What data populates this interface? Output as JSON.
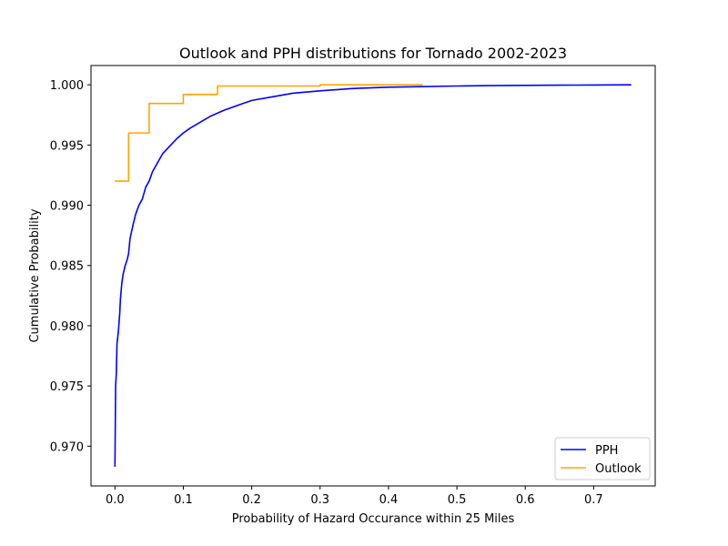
{
  "chart_data": {
    "type": "line",
    "title": "Outlook and PPH distributions for Tornado 2002-2023",
    "xlabel": "Probability of Hazard Occurance within 25 Miles",
    "ylabel": "Cumulative Probability",
    "xlim": [
      -0.035,
      0.79
    ],
    "ylim": [
      0.9667,
      1.0016
    ],
    "xticks": [
      0.0,
      0.1,
      0.2,
      0.3,
      0.4,
      0.5,
      0.6,
      0.7
    ],
    "xtick_labels": [
      "0.0",
      "0.1",
      "0.2",
      "0.3",
      "0.4",
      "0.5",
      "0.6",
      "0.7"
    ],
    "yticks": [
      0.97,
      0.975,
      0.98,
      0.985,
      0.99,
      0.995,
      1.0
    ],
    "ytick_labels": [
      "0.970",
      "0.975",
      "0.980",
      "0.985",
      "0.990",
      "0.995",
      "1.000"
    ],
    "grid": false,
    "legend_position": "lower-right",
    "series": [
      {
        "name": "PPH",
        "color": "#0000ff",
        "step": false,
        "x": [
          0.0,
          0.001,
          0.002,
          0.003,
          0.005,
          0.007,
          0.008,
          0.01,
          0.012,
          0.015,
          0.018,
          0.02,
          0.022,
          0.025,
          0.027,
          0.03,
          0.035,
          0.04,
          0.045,
          0.05,
          0.055,
          0.06,
          0.065,
          0.07,
          0.08,
          0.09,
          0.1,
          0.11,
          0.125,
          0.14,
          0.16,
          0.18,
          0.2,
          0.23,
          0.26,
          0.3,
          0.35,
          0.4,
          0.45,
          0.5,
          0.55,
          0.6,
          0.65,
          0.7,
          0.755
        ],
        "y": [
          0.9683,
          0.975,
          0.976,
          0.9785,
          0.9795,
          0.981,
          0.9822,
          0.9835,
          0.9843,
          0.985,
          0.9855,
          0.986,
          0.9872,
          0.988,
          0.9885,
          0.9892,
          0.99,
          0.9905,
          0.9915,
          0.992,
          0.9928,
          0.9933,
          0.9938,
          0.9943,
          0.9949,
          0.9955,
          0.996,
          0.9964,
          0.9969,
          0.9974,
          0.9979,
          0.9983,
          0.9987,
          0.999,
          0.9993,
          0.9995,
          0.9997,
          0.9998,
          0.99985,
          0.9999,
          0.99993,
          0.99995,
          0.99997,
          0.99998,
          1.0
        ]
      },
      {
        "name": "Outlook",
        "color": "#ffa500",
        "step": true,
        "x": [
          0.0,
          0.02,
          0.05,
          0.1,
          0.15,
          0.3,
          0.45
        ],
        "y": [
          0.992,
          0.996,
          0.99845,
          0.9992,
          0.9999,
          1.0,
          1.0
        ]
      }
    ]
  }
}
